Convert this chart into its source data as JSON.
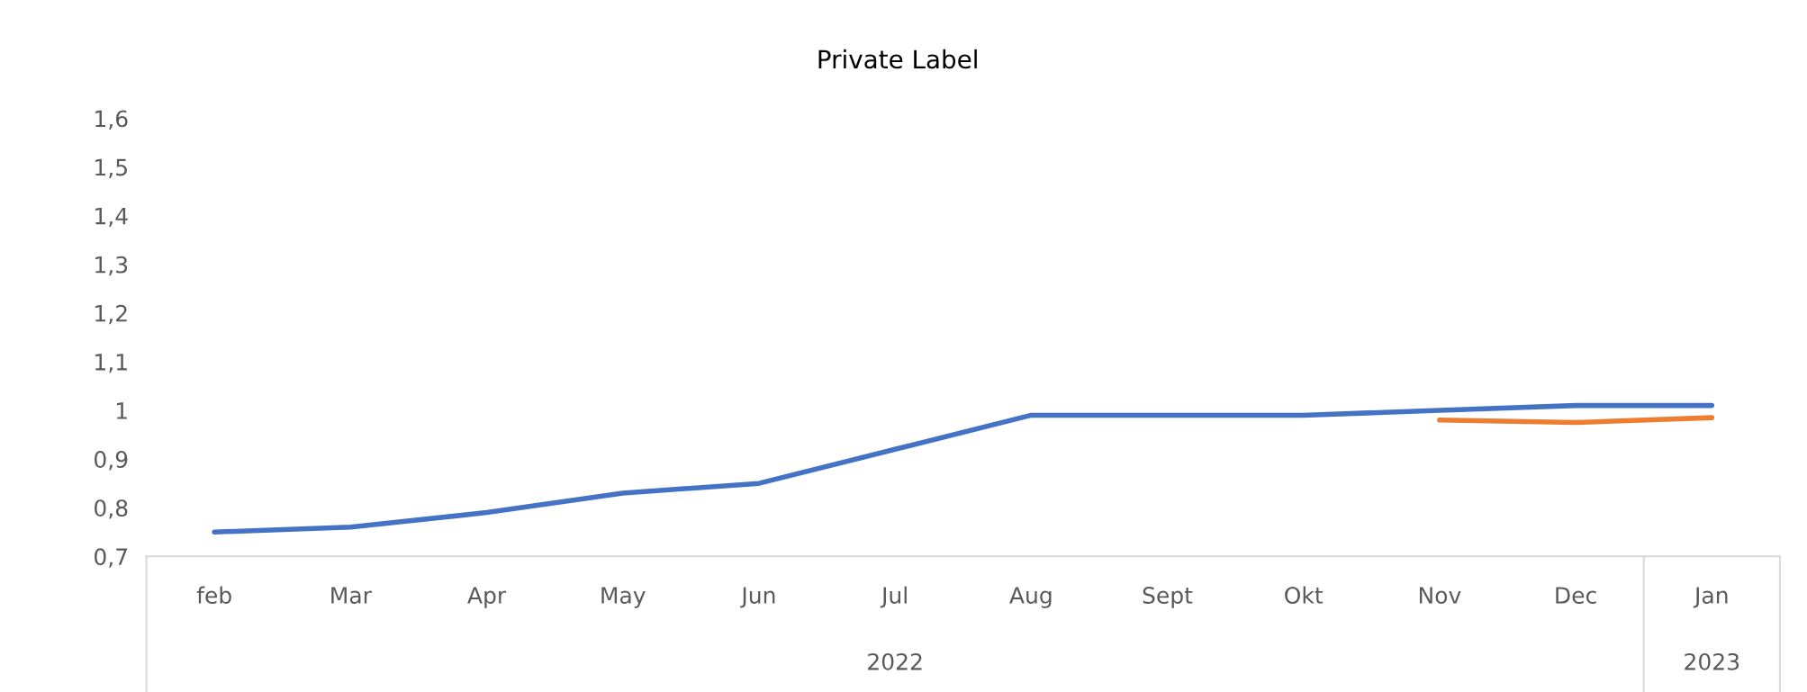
{
  "chart_data": {
    "type": "line",
    "title": "Private Label",
    "categories": [
      "feb",
      "Mar",
      "Apr",
      "May",
      "Jun",
      "Jul",
      "Aug",
      "Sept",
      "Okt",
      "Nov",
      "Dec",
      "Jan"
    ],
    "series": [
      {
        "color": "#4472c4",
        "values": [
          0.75,
          0.76,
          0.79,
          0.83,
          0.85,
          0.92,
          0.99,
          0.99,
          0.99,
          1.0,
          1.01,
          1.01
        ]
      },
      {
        "color": "#ed7d31",
        "values": [
          null,
          null,
          null,
          null,
          null,
          null,
          null,
          null,
          null,
          0.98,
          0.975,
          0.985
        ]
      }
    ],
    "ylim": [
      0.7,
      1.6
    ],
    "yticks": [
      {
        "value": 0.7,
        "label": "0,7"
      },
      {
        "value": 0.8,
        "label": "0,8"
      },
      {
        "value": 0.9,
        "label": "0,9"
      },
      1,
      {
        "value": 1.1,
        "label": "1,1"
      },
      {
        "value": 1.2,
        "label": "1,2"
      },
      {
        "value": 1.3,
        "label": "1,3"
      },
      {
        "value": 1.4,
        "label": "1,4"
      },
      {
        "value": 1.5,
        "label": "1,5"
      },
      {
        "value": 1.6,
        "label": "1,6"
      }
    ],
    "annotations": [
      "2022",
      "2023"
    ],
    "grid": false,
    "marker": "none",
    "line_style": "solid"
  }
}
